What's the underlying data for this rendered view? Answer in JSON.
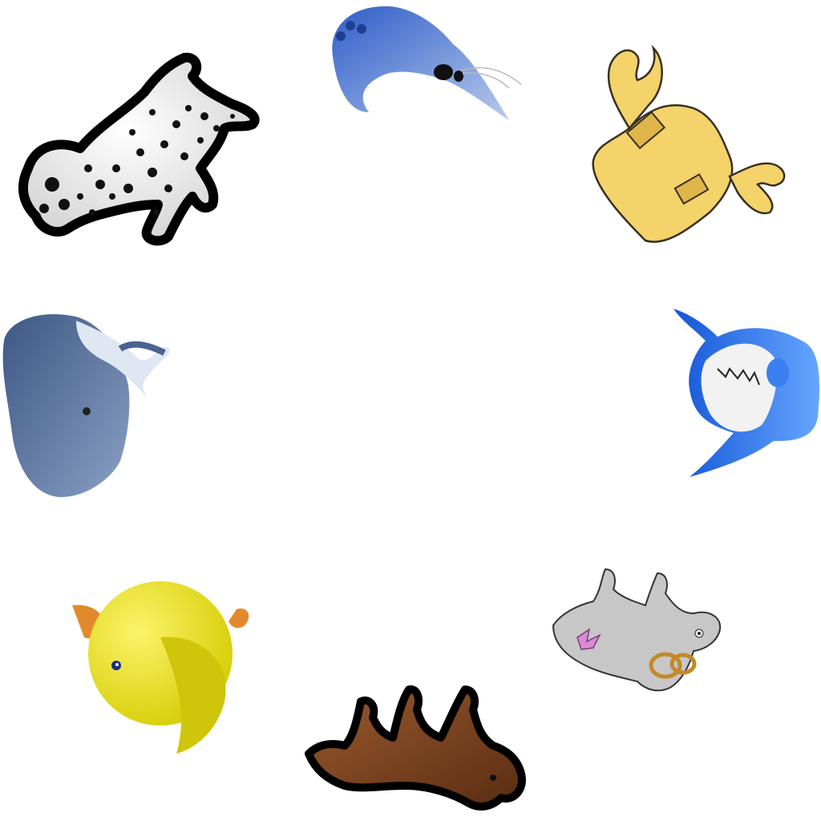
{
  "scene": {
    "background": "#ffffff",
    "arrangement": "circle",
    "animals": [
      {
        "name": "dalmatian",
        "icon": "dalmatian-icon",
        "colors": [
          "#f5f5f5",
          "#111111"
        ]
      },
      {
        "name": "shrimp",
        "icon": "shrimp-icon",
        "colors": [
          "#3a66c8",
          "#9fb6e6"
        ]
      },
      {
        "name": "crab",
        "icon": "crab-icon",
        "colors": [
          "#f3d36a",
          "#e2b84a"
        ]
      },
      {
        "name": "whale",
        "icon": "whale-icon",
        "colors": [
          "#4f6a95",
          "#dfe7f2"
        ]
      },
      {
        "name": "shark",
        "icon": "shark-icon",
        "colors": [
          "#1f6fe0",
          "#ffffff"
        ]
      },
      {
        "name": "chick",
        "icon": "chick-icon",
        "colors": [
          "#f1ea24",
          "#e28a2b"
        ]
      },
      {
        "name": "horse",
        "icon": "horse-icon",
        "colors": [
          "#7a3f1e",
          "#111111"
        ]
      },
      {
        "name": "cow",
        "icon": "cow-icon",
        "colors": [
          "#c7c7c7",
          "#d98bd6"
        ]
      }
    ]
  }
}
